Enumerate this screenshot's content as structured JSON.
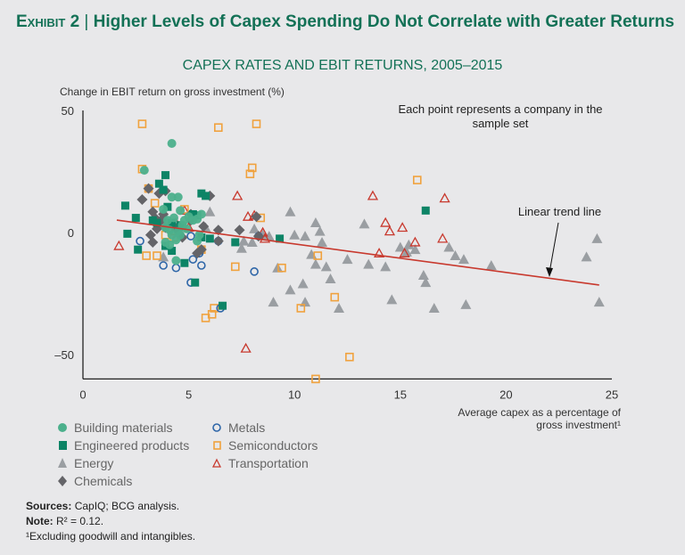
{
  "header": {
    "exhibit": "Exhibit 2",
    "separator": "|",
    "title": "Higher Levels of Capex Spending Do Not Correlate with Greater Returns"
  },
  "footer": {
    "sources_label": "Sources:",
    "sources_text": "CapIQ; BCG analysis.",
    "note_label": "Note:",
    "note_text": "R² = 0.12.",
    "footnote": "¹Excluding goodwill and intangibles."
  },
  "chart_data": {
    "type": "scatter",
    "title": "CAPEX RATES AND EBIT RETURNS, 2005–2015",
    "ylabel": "Change in EBIT return on gross investment (%)",
    "xlabel": "Average capex as a percentage of gross investment¹",
    "xlim": [
      0,
      25
    ],
    "ylim": [
      -60,
      50
    ],
    "xticks": [
      "0",
      "5",
      "10",
      "15",
      "20",
      "25"
    ],
    "yticks": [
      "50",
      "0",
      "–50"
    ],
    "grid": false,
    "annotations": {
      "each_point": "Each point represents a company in the sample set",
      "trend": "Linear trend line"
    },
    "trend_line": {
      "x": [
        1.6,
        24.4
      ],
      "y": [
        5.1,
        -21.5
      ]
    },
    "legend": [
      {
        "name": "Building materials",
        "marker": "circle-filled",
        "color": "#4cb08c"
      },
      {
        "name": "Engineered products",
        "marker": "square-filled",
        "color": "#0d8466"
      },
      {
        "name": "Energy",
        "marker": "triangle-filled",
        "color": "#9a9ea2"
      },
      {
        "name": "Chemicals",
        "marker": "diamond-filled",
        "color": "#646468"
      },
      {
        "name": "Metals",
        "marker": "circle-open",
        "color": "#2e66a8"
      },
      {
        "name": "Semiconductors",
        "marker": "square-open",
        "color": "#f0a23e"
      },
      {
        "name": "Transportation",
        "marker": "triangle-open",
        "color": "#c8392e"
      }
    ],
    "trend_color": "#c8392e",
    "series": [
      {
        "name": "Building materials",
        "points": [
          [
            4.2,
            36.5
          ],
          [
            2.9,
            25.5
          ],
          [
            4.2,
            14.5
          ],
          [
            4.5,
            14.5
          ],
          [
            3.8,
            9.5
          ],
          [
            4.6,
            9
          ],
          [
            4.0,
            5
          ],
          [
            4.3,
            6
          ],
          [
            4.8,
            5
          ],
          [
            5.0,
            6.5
          ],
          [
            5.2,
            5
          ],
          [
            5.4,
            5.5
          ],
          [
            3.9,
            2
          ],
          [
            4.1,
            1
          ],
          [
            4.5,
            0.5
          ],
          [
            4.7,
            3
          ],
          [
            4.9,
            1.5
          ],
          [
            4.2,
            -1
          ],
          [
            4.4,
            -3
          ],
          [
            3.9,
            -4
          ],
          [
            4.1,
            -5
          ],
          [
            5.5,
            -1
          ],
          [
            5.4,
            -3.5
          ],
          [
            4.4,
            -11.5
          ],
          [
            5.6,
            7.5
          ],
          [
            4.6,
            -1
          ]
        ]
      },
      {
        "name": "Engineered products",
        "points": [
          [
            2.0,
            11
          ],
          [
            3.9,
            23.5
          ],
          [
            3.6,
            20
          ],
          [
            3.8,
            17.5
          ],
          [
            4.0,
            10.5
          ],
          [
            2.5,
            6
          ],
          [
            3.3,
            5
          ],
          [
            3.5,
            4
          ],
          [
            4.2,
            4
          ],
          [
            5.2,
            7.5
          ],
          [
            5.4,
            7
          ],
          [
            5.6,
            16
          ],
          [
            5.8,
            15
          ],
          [
            4.6,
            3
          ],
          [
            5.6,
            -2
          ],
          [
            6.0,
            -2.5
          ],
          [
            7.2,
            -4
          ],
          [
            3.9,
            -5.5
          ],
          [
            4.2,
            -7.5
          ],
          [
            4.8,
            -12.5
          ],
          [
            5.3,
            -20.5
          ],
          [
            2.1,
            -0.5
          ],
          [
            2.6,
            -7
          ],
          [
            6.6,
            -30
          ],
          [
            9.3,
            -2.5
          ],
          [
            16.2,
            9
          ]
        ]
      },
      {
        "name": "Energy",
        "points": [
          [
            6.0,
            8.5
          ],
          [
            7.5,
            -6.5
          ],
          [
            7.6,
            -3.5
          ],
          [
            8.0,
            -4
          ],
          [
            8.1,
            1.5
          ],
          [
            8.5,
            -1
          ],
          [
            8.8,
            -1.5
          ],
          [
            9.8,
            8.5
          ],
          [
            9.2,
            -14.5
          ],
          [
            9.8,
            -23.5
          ],
          [
            10.4,
            -21
          ],
          [
            10.5,
            -28.5
          ],
          [
            9.0,
            -28.5
          ],
          [
            10.0,
            -1
          ],
          [
            10.5,
            -1.5
          ],
          [
            11.0,
            4
          ],
          [
            11.2,
            0.5
          ],
          [
            11.3,
            -4
          ],
          [
            10.8,
            -9
          ],
          [
            11.0,
            -13
          ],
          [
            11.5,
            -14
          ],
          [
            11.7,
            -19
          ],
          [
            12.1,
            -31
          ],
          [
            12.5,
            -11
          ],
          [
            13.3,
            3.5
          ],
          [
            13.5,
            -13
          ],
          [
            14.3,
            -14
          ],
          [
            14.6,
            -27.5
          ],
          [
            15.0,
            -6
          ],
          [
            15.3,
            -8
          ],
          [
            15.4,
            -5
          ],
          [
            15.7,
            -7
          ],
          [
            16.1,
            -17.5
          ],
          [
            16.2,
            -20.5
          ],
          [
            16.6,
            -31
          ],
          [
            17.3,
            -6
          ],
          [
            17.6,
            -9.5
          ],
          [
            18.0,
            -11
          ],
          [
            18.1,
            -29.5
          ],
          [
            19.3,
            -13.5
          ],
          [
            23.8,
            -10
          ],
          [
            24.3,
            -2.5
          ],
          [
            24.4,
            -28.5
          ],
          [
            3.8,
            -10
          ],
          [
            3.9,
            5
          ],
          [
            5.8,
            2
          ]
        ]
      },
      {
        "name": "Chemicals",
        "points": [
          [
            3.1,
            18
          ],
          [
            2.8,
            13.5
          ],
          [
            3.6,
            16
          ],
          [
            3.9,
            17
          ],
          [
            3.3,
            8.5
          ],
          [
            3.4,
            6
          ],
          [
            3.5,
            4
          ],
          [
            3.7,
            5
          ],
          [
            3.5,
            1.5
          ],
          [
            3.2,
            -1
          ],
          [
            3.3,
            -4
          ],
          [
            3.9,
            2
          ],
          [
            3.8,
            7.5
          ],
          [
            4.3,
            2.5
          ],
          [
            4.5,
            1
          ],
          [
            5.1,
            7.5
          ],
          [
            5.1,
            5
          ],
          [
            5.7,
            2.5
          ],
          [
            6.0,
            15
          ],
          [
            6.4,
            -3.5
          ],
          [
            6.4,
            1
          ],
          [
            7.4,
            1
          ],
          [
            8.2,
            6.5
          ],
          [
            8.3,
            -1.5
          ],
          [
            5.6,
            -7
          ],
          [
            5.4,
            -8.5
          ],
          [
            4.7,
            -2
          ]
        ]
      },
      {
        "name": "Metals",
        "points": [
          [
            2.7,
            -3.5
          ],
          [
            3.8,
            -13.5
          ],
          [
            4.4,
            -14.5
          ],
          [
            5.1,
            -1.5
          ],
          [
            5.2,
            -11
          ],
          [
            5.5,
            -8.5
          ],
          [
            5.6,
            -13.5
          ],
          [
            5.1,
            -20.5
          ],
          [
            6.4,
            -3.5
          ],
          [
            6.5,
            -31
          ],
          [
            8.1,
            -16
          ],
          [
            8.3,
            -1.5
          ]
        ]
      },
      {
        "name": "Semiconductors",
        "points": [
          [
            2.8,
            44.5
          ],
          [
            2.8,
            26
          ],
          [
            3.1,
            18
          ],
          [
            3.4,
            12
          ],
          [
            6.4,
            43
          ],
          [
            8.2,
            44.5
          ],
          [
            7.9,
            24
          ],
          [
            8.0,
            26.5
          ],
          [
            4.8,
            9.5
          ],
          [
            5.2,
            7
          ],
          [
            4.3,
            -2
          ],
          [
            3.9,
            -1
          ],
          [
            3.0,
            -9.5
          ],
          [
            3.5,
            -9.5
          ],
          [
            5.6,
            -7
          ],
          [
            6.2,
            -31
          ],
          [
            6.1,
            -33.5
          ],
          [
            5.8,
            -35
          ],
          [
            7.2,
            -14
          ],
          [
            9.4,
            -14.5
          ],
          [
            8.4,
            6
          ],
          [
            10.3,
            -31
          ],
          [
            11.9,
            -26.5
          ],
          [
            11.1,
            -9.5
          ],
          [
            11.0,
            -60
          ],
          [
            12.6,
            -51
          ],
          [
            15.8,
            21.5
          ]
        ]
      },
      {
        "name": "Transportation",
        "points": [
          [
            1.7,
            -5.5
          ],
          [
            4.3,
            0.5
          ],
          [
            4.8,
            9
          ],
          [
            4.4,
            4
          ],
          [
            5.0,
            2
          ],
          [
            7.3,
            15
          ],
          [
            7.8,
            6.5
          ],
          [
            7.7,
            -47.5
          ],
          [
            8.1,
            7
          ],
          [
            8.5,
            0
          ],
          [
            8.6,
            -2.5
          ],
          [
            13.7,
            15
          ],
          [
            14.3,
            4
          ],
          [
            14.5,
            0.5
          ],
          [
            14.0,
            -8.5
          ],
          [
            15.1,
            2
          ],
          [
            15.2,
            -8.5
          ],
          [
            15.7,
            -4
          ],
          [
            17.0,
            -2.5
          ],
          [
            17.1,
            14
          ]
        ]
      }
    ]
  }
}
